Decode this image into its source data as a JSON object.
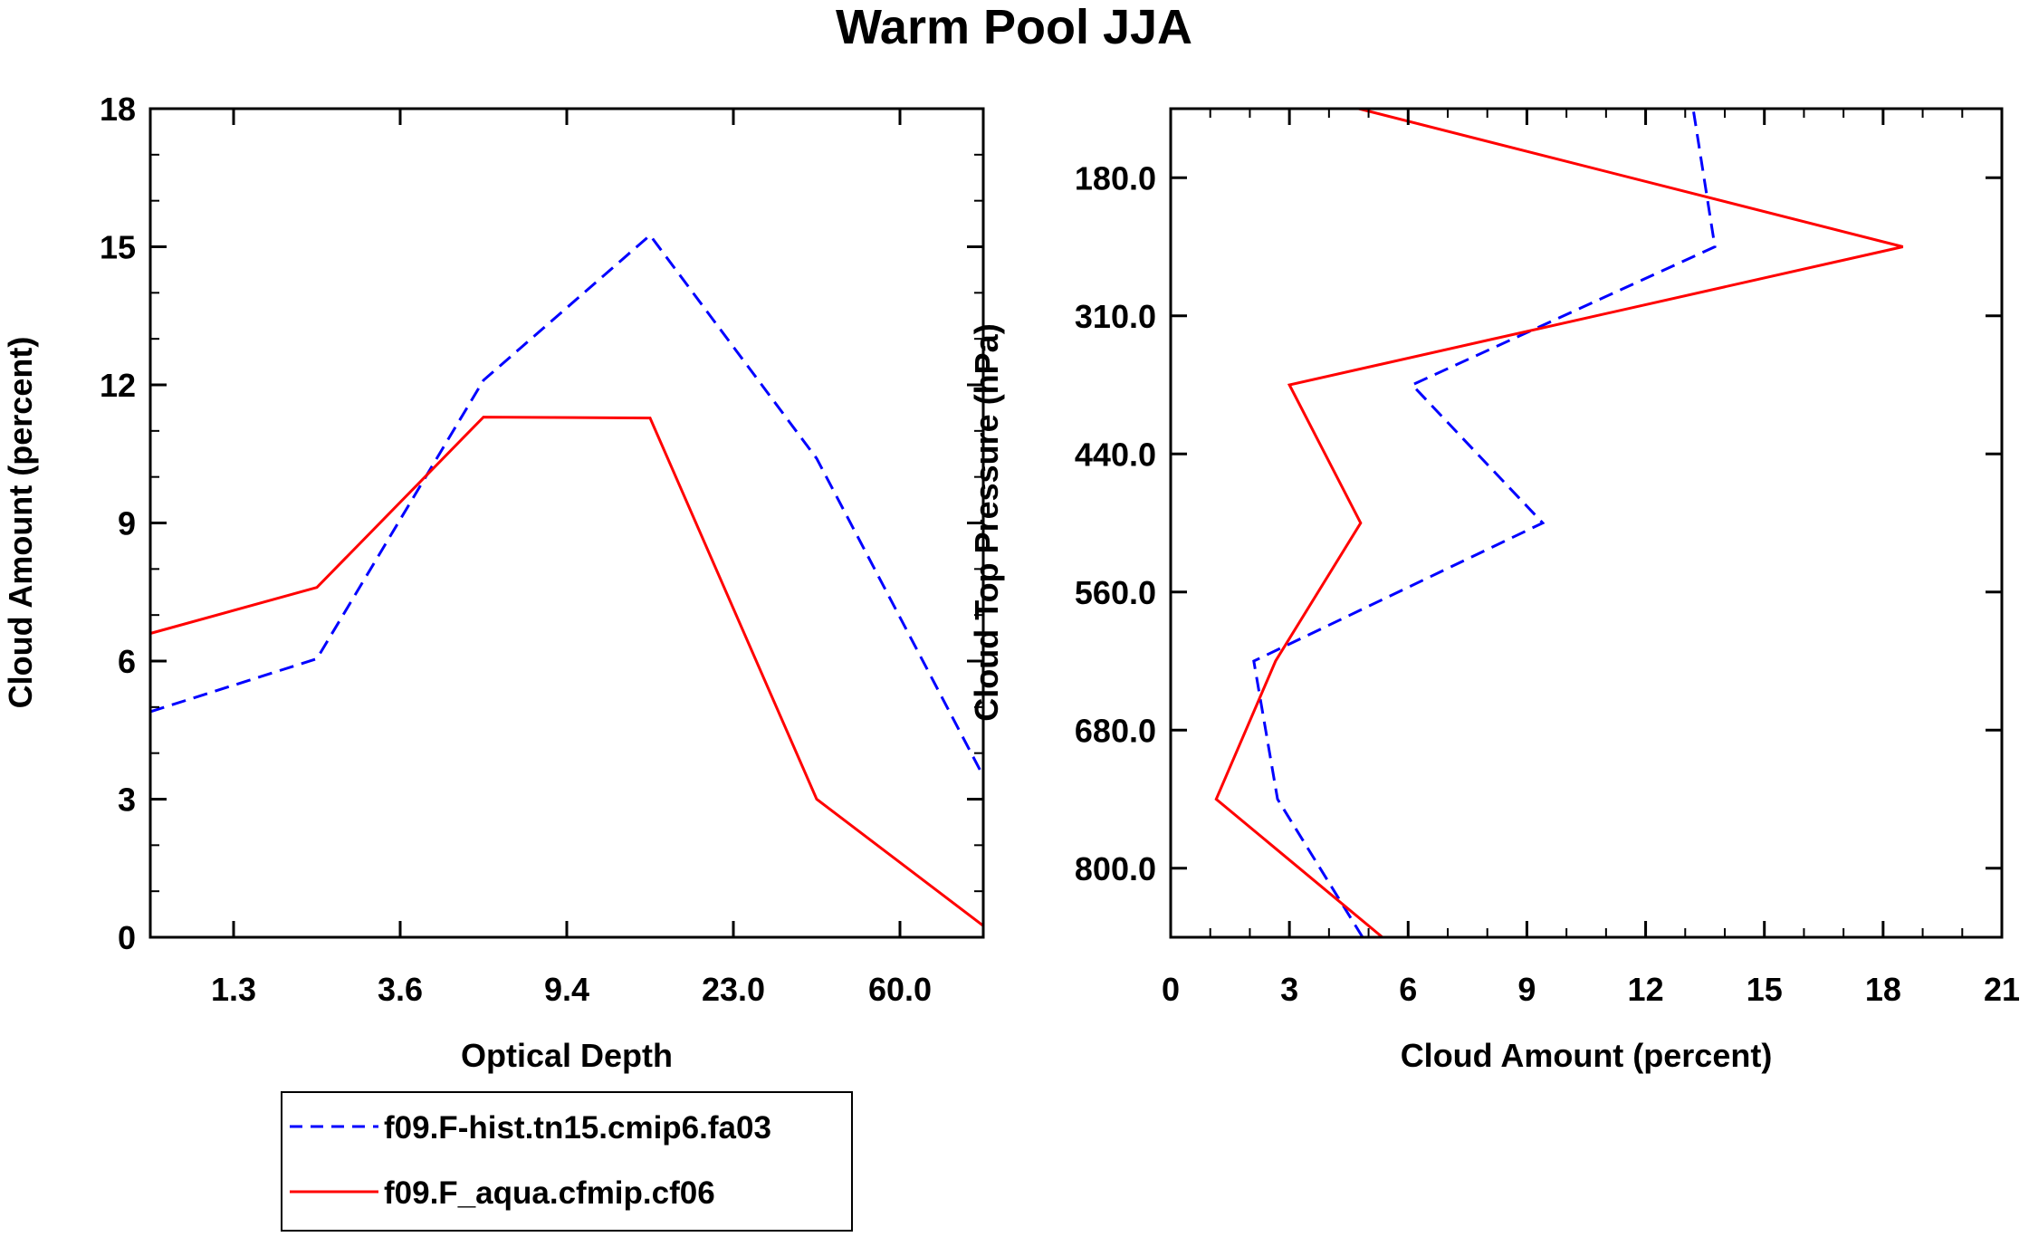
{
  "title": "Warm Pool JJA",
  "chart_data": [
    {
      "type": "line",
      "xlabel": "Optical Depth",
      "ylabel": "Cloud Amount (percent)",
      "x_tick_labels": [
        "1.3",
        "3.6",
        "9.4",
        "23.0",
        "60.0"
      ],
      "y_ticks": [
        0,
        3,
        6,
        9,
        12,
        15,
        18
      ],
      "ylim": [
        0,
        18
      ],
      "x_bins": [
        0,
        1,
        2,
        3,
        4,
        5
      ],
      "series": [
        {
          "name": "f09.F-hist.tn15.cmip6.fa03",
          "color": "#0000ff",
          "dash": "dashed",
          "values": [
            4.9,
            6.05,
            12.1,
            15.25,
            10.4,
            3.5
          ]
        },
        {
          "name": "f09.F_aqua.cfmip.cf06",
          "color": "#ff0000",
          "dash": "solid",
          "values": [
            6.6,
            7.6,
            11.3,
            11.28,
            3.0,
            0.25
          ]
        }
      ]
    },
    {
      "type": "line",
      "xlabel": "Cloud Amount (percent)",
      "ylabel": "Cloud Top Pressure (hPa)",
      "x_ticks": [
        0,
        3,
        6,
        9,
        12,
        15,
        18,
        21
      ],
      "xlim": [
        0,
        21
      ],
      "y_tick_labels": [
        "180.0",
        "310.0",
        "440.0",
        "560.0",
        "680.0",
        "800.0"
      ],
      "y_bins": [
        0,
        1,
        2,
        3,
        4,
        5,
        6
      ],
      "series": [
        {
          "name": "f09.F-hist.tn15.cmip6.fa03",
          "color": "#0000ff",
          "dash": "dashed",
          "values": [
            4.85,
            2.7,
            2.1,
            9.4,
            6.1,
            13.75,
            13.2
          ]
        },
        {
          "name": "f09.F_aqua.cfmip.cf06",
          "color": "#ff0000",
          "dash": "solid",
          "values": [
            5.35,
            1.15,
            2.65,
            4.8,
            3.0,
            18.5,
            4.75
          ]
        }
      ]
    }
  ],
  "legend": [
    {
      "label": "f09.F-hist.tn15.cmip6.fa03",
      "color": "#0000ff",
      "dash": "dashed"
    },
    {
      "label": "f09.F_aqua.cfmip.cf06",
      "color": "#ff0000",
      "dash": "solid"
    }
  ]
}
